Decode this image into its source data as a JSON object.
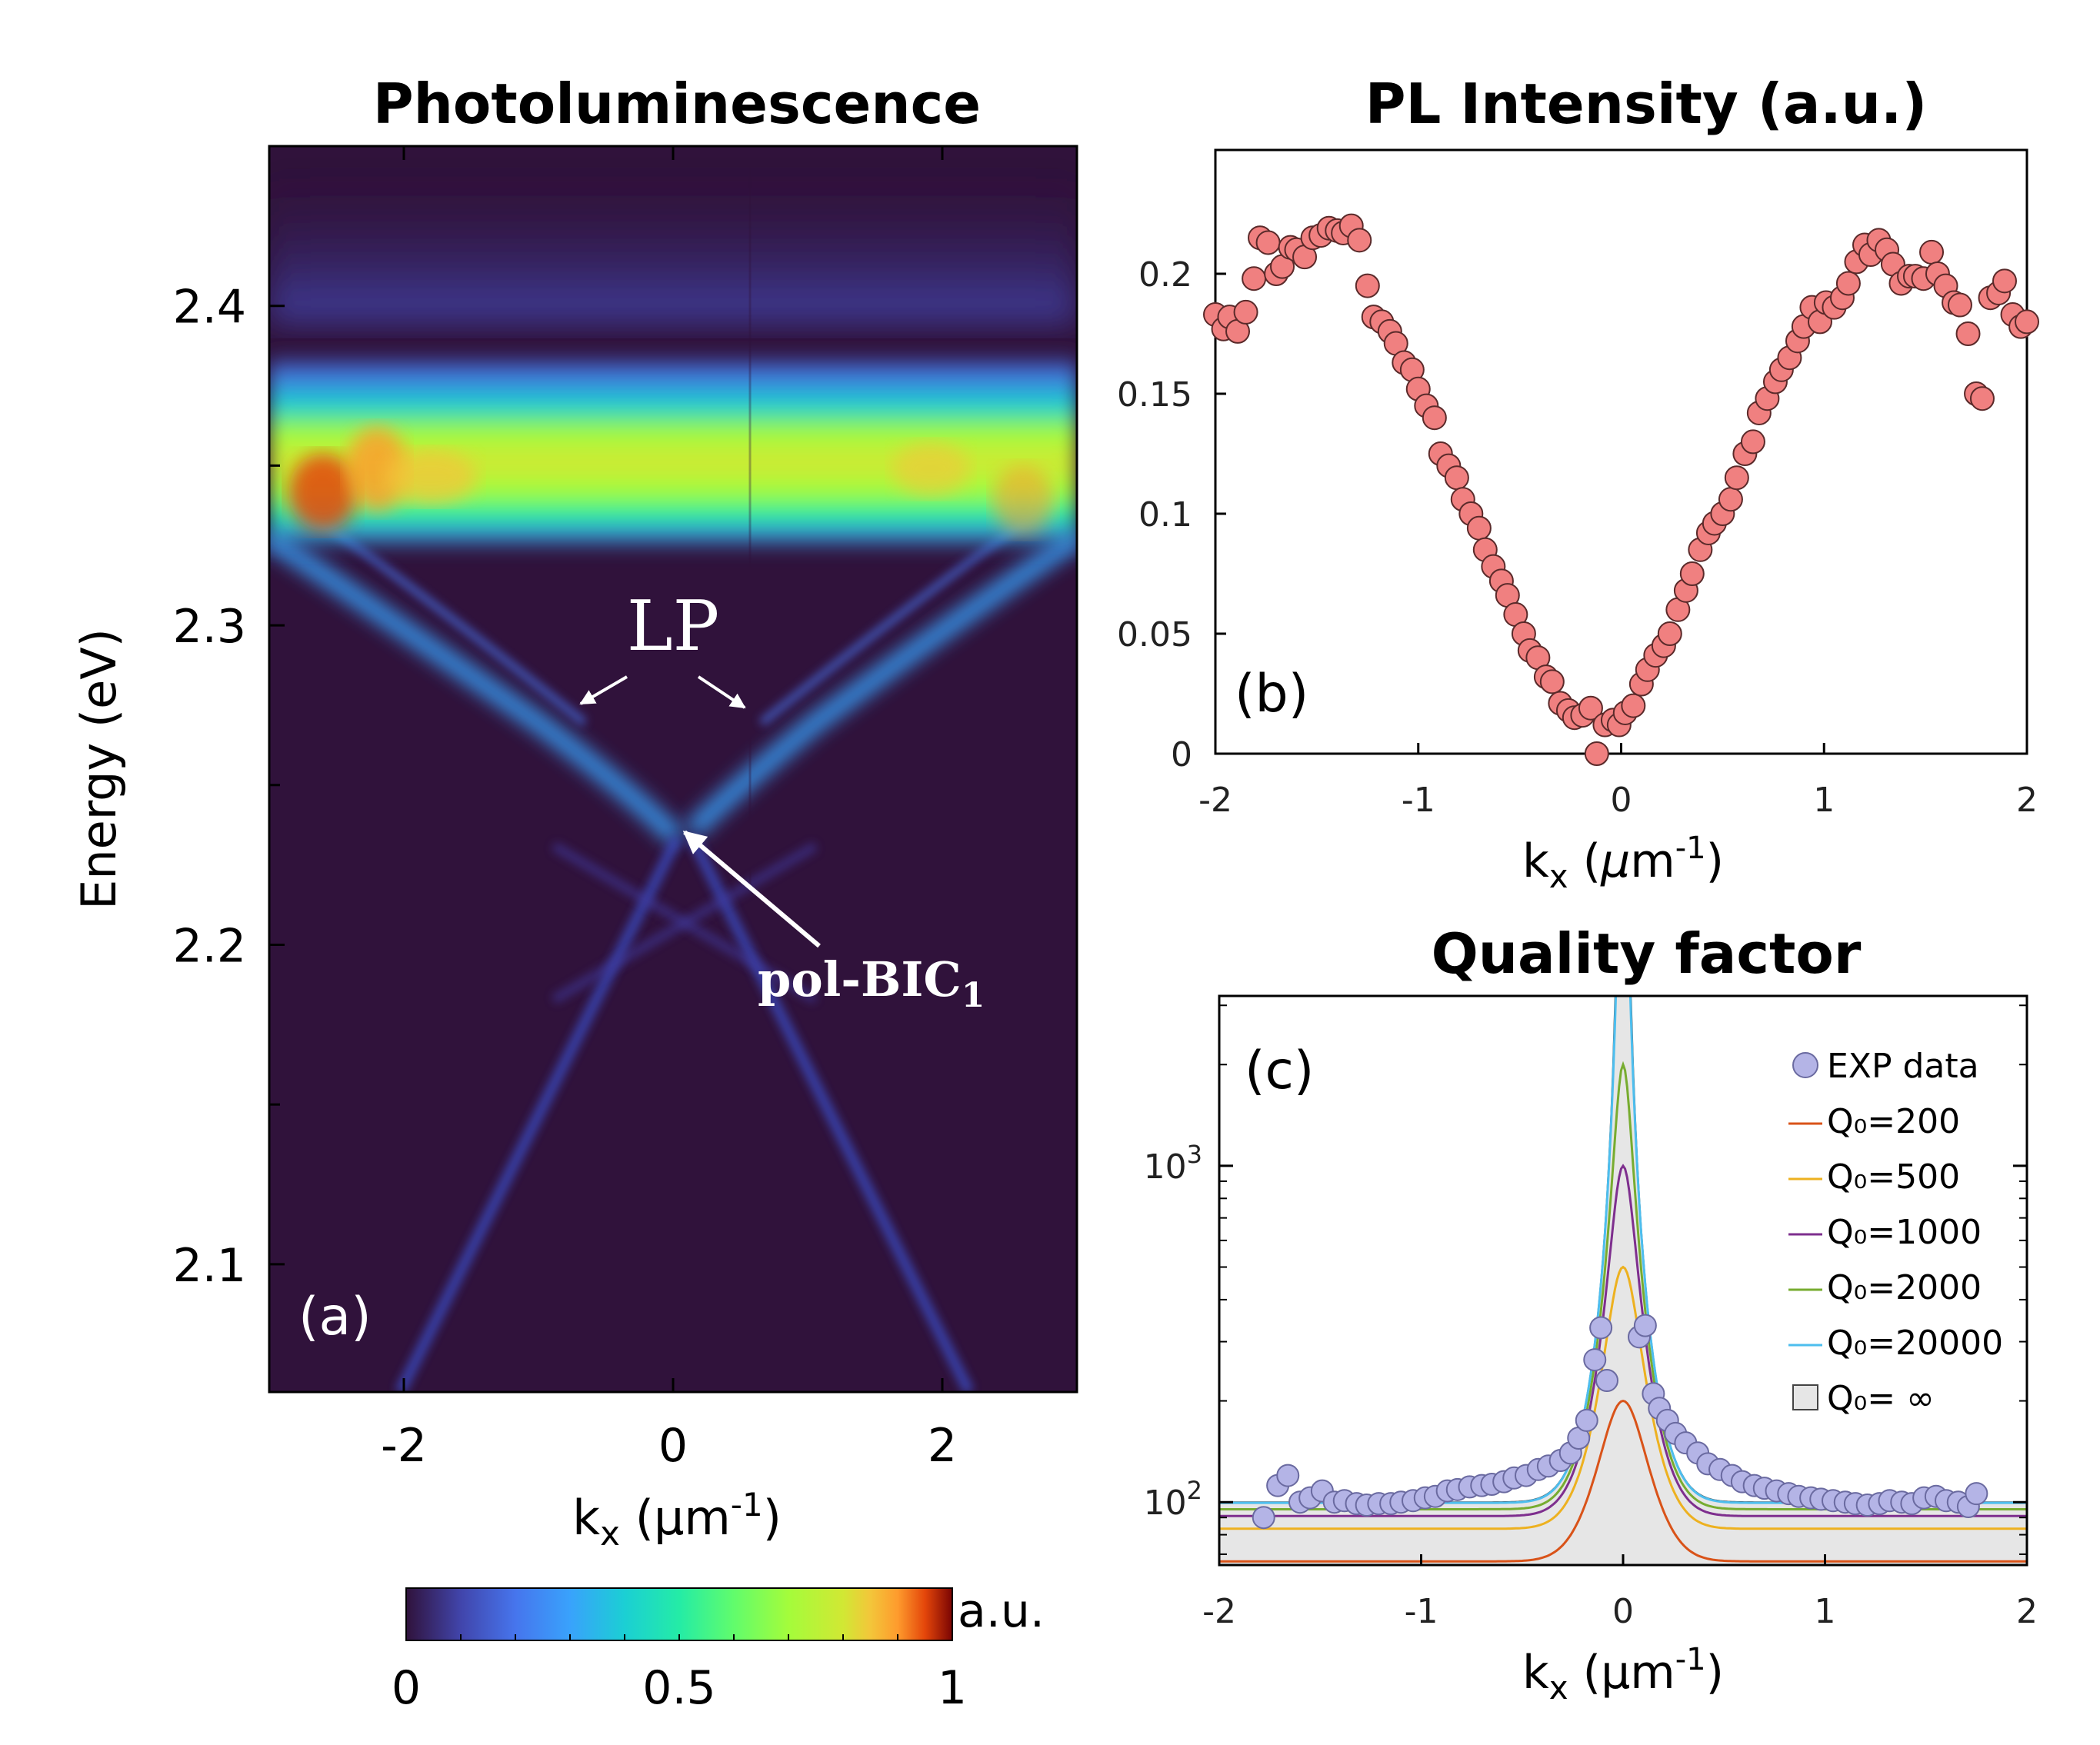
{
  "chart_data": [
    {
      "panel": "(a)",
      "type": "heatmap",
      "title": "Photoluminescence",
      "xlabel": "k_x (μm^-1)",
      "ylabel": "Energy (eV)",
      "xlim": [
        -3,
        3
      ],
      "ylim": [
        2.06,
        2.45
      ],
      "xticks": [
        -2,
        0,
        2
      ],
      "yticks": [
        2.1,
        2.2,
        2.3,
        2.4
      ],
      "annotations": [
        {
          "text": "LP"
        },
        {
          "text": "pol-BIC",
          "subscript": "1"
        }
      ],
      "colorbar": {
        "label": "a.u.",
        "range": [
          0,
          1
        ],
        "ticks": [
          "0",
          "0.5",
          "1"
        ]
      }
    },
    {
      "panel": "(b)",
      "type": "scatter",
      "title": "PL Intensity (a.u.)",
      "xlabel": "k_x (μm^-1)",
      "xlim": [
        -2,
        2
      ],
      "ylim": [
        0,
        0.25
      ],
      "xticks": [
        -2,
        -1,
        0,
        1,
        2
      ],
      "yticks": [
        0,
        0.05,
        0.1,
        0.15,
        0.2
      ],
      "ytick_labels": [
        "0",
        "0.05",
        "0.1",
        "0.15",
        "0.2"
      ],
      "x": [
        -2.0,
        -1.96,
        -1.93,
        -1.89,
        -1.85,
        -1.81,
        -1.78,
        -1.74,
        -1.7,
        -1.67,
        -1.63,
        -1.6,
        -1.56,
        -1.52,
        -1.48,
        -1.44,
        -1.4,
        -1.37,
        -1.33,
        -1.29,
        -1.25,
        -1.22,
        -1.18,
        -1.14,
        -1.11,
        -1.07,
        -1.03,
        -1.0,
        -0.96,
        -0.92,
        -0.89,
        -0.85,
        -0.81,
        -0.78,
        -0.74,
        -0.7,
        -0.67,
        -0.63,
        -0.59,
        -0.56,
        -0.52,
        -0.48,
        -0.45,
        -0.41,
        -0.37,
        -0.34,
        -0.3,
        -0.26,
        -0.23,
        -0.19,
        -0.15,
        -0.12,
        -0.08,
        -0.04,
        -0.01,
        0.02,
        0.06,
        0.1,
        0.13,
        0.17,
        0.21,
        0.24,
        0.28,
        0.32,
        0.35,
        0.39,
        0.43,
        0.46,
        0.5,
        0.54,
        0.57,
        0.61,
        0.65,
        0.68,
        0.72,
        0.76,
        0.79,
        0.83,
        0.87,
        0.9,
        0.94,
        0.98,
        1.01,
        1.05,
        1.09,
        1.12,
        1.16,
        1.2,
        1.23,
        1.27,
        1.31,
        1.34,
        1.38,
        1.42,
        1.45,
        1.49,
        1.53,
        1.56,
        1.6,
        1.64,
        1.67,
        1.71,
        1.75,
        1.78,
        1.82,
        1.86,
        1.89,
        1.93,
        1.97,
        2.0
      ],
      "y": [
        0.183,
        0.177,
        0.182,
        0.176,
        0.184,
        0.198,
        0.215,
        0.213,
        0.2,
        0.203,
        0.211,
        0.21,
        0.207,
        0.215,
        0.216,
        0.219,
        0.218,
        0.217,
        0.22,
        0.214,
        0.195,
        0.182,
        0.18,
        0.176,
        0.171,
        0.163,
        0.16,
        0.152,
        0.145,
        0.14,
        0.125,
        0.12,
        0.115,
        0.106,
        0.1,
        0.094,
        0.085,
        0.078,
        0.072,
        0.066,
        0.058,
        0.05,
        0.043,
        0.04,
        0.032,
        0.03,
        0.021,
        0.018,
        0.015,
        0.016,
        0.019,
        0.0,
        0.012,
        0.014,
        0.012,
        0.017,
        0.02,
        0.029,
        0.035,
        0.041,
        0.045,
        0.05,
        0.06,
        0.068,
        0.075,
        0.085,
        0.092,
        0.096,
        0.1,
        0.106,
        0.115,
        0.125,
        0.13,
        0.142,
        0.148,
        0.155,
        0.16,
        0.165,
        0.172,
        0.178,
        0.186,
        0.18,
        0.188,
        0.186,
        0.19,
        0.196,
        0.205,
        0.212,
        0.208,
        0.214,
        0.21,
        0.204,
        0.196,
        0.199,
        0.199,
        0.198,
        0.209,
        0.2,
        0.195,
        0.188,
        0.187,
        0.175,
        0.15,
        0.148,
        0.19,
        0.192,
        0.197,
        0.183,
        0.178,
        0.18
      ]
    },
    {
      "panel": "(c)",
      "type": "line",
      "title": "Quality factor",
      "xlabel": "k_x (μm^-1)",
      "yscale": "log",
      "xlim": [
        -2,
        2
      ],
      "ylim": [
        65,
        3200
      ],
      "xticks": [
        -2,
        -1,
        0,
        1,
        2
      ],
      "yticks": [
        100,
        1000
      ],
      "ytick_labels": [
        "10^2",
        "10^3"
      ],
      "model": "Q = (Q0 * Qinf) / (Q0 + Qinf), Qinf = 100 / (1 - exp(-(k/0.22)^2))",
      "series": [
        {
          "name": "Q₀=200",
          "Q0": 200,
          "color": "#d95319"
        },
        {
          "name": "Q₀=500",
          "Q0": 500,
          "color": "#edb120"
        },
        {
          "name": "Q₀=1000",
          "Q0": 1000,
          "color": "#7e2f8e"
        },
        {
          "name": "Q₀=2000",
          "Q0": 2000,
          "color": "#77ac30"
        },
        {
          "name": "Q₀=20000",
          "Q0": 20000,
          "color": "#4dbeee"
        },
        {
          "name": "Q₀= ∞",
          "Q0": null,
          "color": "#e6e6e6",
          "filled": true
        }
      ],
      "exp_data": {
        "name": "EXP data",
        "color": "#b4b4e6",
        "x": [
          -1.78,
          -1.71,
          -1.66,
          -1.6,
          -1.55,
          -1.49,
          -1.43,
          -1.38,
          -1.32,
          -1.27,
          -1.21,
          -1.15,
          -1.1,
          -1.04,
          -0.98,
          -0.93,
          -0.87,
          -0.82,
          -0.76,
          -0.7,
          -0.65,
          -0.59,
          -0.54,
          -0.48,
          -0.42,
          -0.37,
          -0.31,
          -0.26,
          -0.22,
          -0.18,
          -0.14,
          -0.11,
          -0.08,
          0.08,
          0.11,
          0.15,
          0.18,
          0.22,
          0.26,
          0.31,
          0.37,
          0.42,
          0.48,
          0.54,
          0.59,
          0.65,
          0.7,
          0.76,
          0.82,
          0.87,
          0.93,
          0.98,
          1.04,
          1.1,
          1.15,
          1.21,
          1.27,
          1.32,
          1.38,
          1.43,
          1.49,
          1.55,
          1.6,
          1.66,
          1.71,
          1.75
        ],
        "y": [
          90,
          112,
          120,
          100,
          103,
          108,
          100,
          101,
          99,
          98,
          99,
          99,
          100,
          101,
          103,
          104,
          108,
          109,
          111,
          112,
          113,
          115,
          118,
          120,
          125,
          128,
          133,
          140,
          155,
          175,
          265,
          330,
          230,
          310,
          335,
          210,
          190,
          175,
          160,
          150,
          140,
          130,
          125,
          120,
          115,
          112,
          110,
          108,
          106,
          104,
          103,
          102,
          101,
          100,
          99,
          98,
          99,
          101,
          100,
          99,
          103,
          104,
          101,
          100,
          97,
          106
        ]
      },
      "legend": {
        "placement": "upper-right"
      }
    }
  ]
}
